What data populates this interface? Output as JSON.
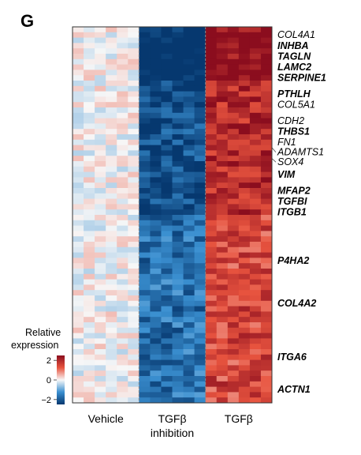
{
  "panel_label": "G",
  "colors": {
    "low": "#08519c",
    "mid": "#f7fbff",
    "high": "#b2182b",
    "separator": "#888888"
  },
  "chart_data": {
    "type": "heatmap",
    "title": "",
    "groups": [
      {
        "name": "Vehicle",
        "label_lines": [
          "Vehicle"
        ],
        "samples": 6
      },
      {
        "name": "TGFβ inhibition",
        "label_lines": [
          "TGFβ",
          "inhibition"
        ],
        "samples": 6
      },
      {
        "name": "TGFβ",
        "label_lines": [
          "TGFβ"
        ],
        "samples": 6
      }
    ],
    "gene_count": 70,
    "group_mean_expression": [
      0.0,
      -2.0,
      1.8
    ],
    "color_scale": {
      "title_lines": [
        "Relative",
        "expression"
      ],
      "min": -2.5,
      "max": 2.5,
      "ticks": [
        2,
        0,
        -2
      ],
      "tick_labels": [
        "2",
        "0",
        "−2"
      ]
    },
    "labeled_genes": [
      {
        "gene": "COL4A1",
        "row": 1,
        "bold": false
      },
      {
        "gene": "INHBA",
        "row": 3,
        "bold": true
      },
      {
        "gene": "TAGLN",
        "row": 5,
        "bold": true
      },
      {
        "gene": "LAMC2",
        "row": 7,
        "bold": true
      },
      {
        "gene": "SERPINE1",
        "row": 9,
        "bold": true
      },
      {
        "gene": "PTHLH",
        "row": 12,
        "bold": true
      },
      {
        "gene": "COL5A1",
        "row": 14,
        "bold": false
      },
      {
        "gene": "CDH2",
        "row": 17,
        "bold": false
      },
      {
        "gene": "THBS1",
        "row": 19,
        "bold": true
      },
      {
        "gene": "FN1",
        "row": 21,
        "bold": false
      },
      {
        "gene": "ADAMTS1",
        "row": 22,
        "bold": false
      },
      {
        "gene": "SOX4",
        "row": 24,
        "bold": false
      },
      {
        "gene": "VIM",
        "row": 27,
        "bold": true
      },
      {
        "gene": "MFAP2",
        "row": 30,
        "bold": true
      },
      {
        "gene": "TGFBI",
        "row": 32,
        "bold": true
      },
      {
        "gene": "ITGB1",
        "row": 34,
        "bold": true
      },
      {
        "gene": "P4HA2",
        "row": 43,
        "bold": true
      },
      {
        "gene": "COL4A2",
        "row": 51,
        "bold": true
      },
      {
        "gene": "ITGA6",
        "row": 61,
        "bold": true
      },
      {
        "gene": "ACTN1",
        "row": 67,
        "bold": true
      }
    ],
    "legend": "left-bottom",
    "grid": false
  }
}
